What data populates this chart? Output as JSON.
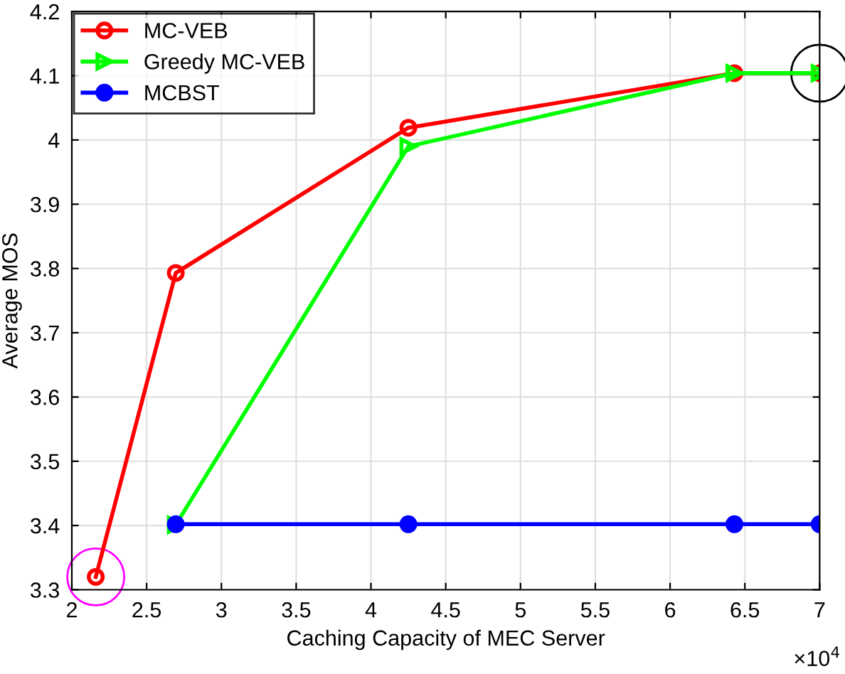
{
  "chart_data": {
    "type": "line",
    "xlabel": "Caching Capacity of MEC Server",
    "ylabel": "Average MOS",
    "x": [
      2.16,
      2.695,
      4.25,
      6.43,
      7
    ],
    "series": [
      {
        "name": "MC-VEB",
        "color": "#ff0000",
        "marker": "circle",
        "values": [
          3.32,
          3.793,
          4.019,
          4.104,
          4.104
        ]
      },
      {
        "name": "Greedy MC-VEB",
        "color": "#00ff00",
        "marker": "triangle",
        "x": [
          2.695,
          4.25,
          6.43,
          7
        ],
        "values": [
          3.401,
          3.99,
          4.104,
          4.104
        ]
      },
      {
        "name": "MCBST",
        "color": "#0000ff",
        "marker": "circle_filled",
        "x": [
          2.695,
          4.25,
          6.43,
          7
        ],
        "values": [
          3.402,
          3.402,
          3.402,
          3.402
        ]
      }
    ],
    "xlim": [
      2,
      7
    ],
    "xticks": [
      2,
      2.5,
      3,
      3.5,
      4,
      4.5,
      5,
      5.5,
      6,
      6.5,
      7
    ],
    "ylim": [
      3.3,
      4.2
    ],
    "yticks": [
      3.3,
      3.4,
      3.5,
      3.6,
      3.7,
      3.8,
      3.9,
      4,
      4.1,
      4.2
    ],
    "annotations": [
      "×10$^{4}$"
    ],
    "grid": true,
    "legend": "top left",
    "line_style": "solid"
  }
}
